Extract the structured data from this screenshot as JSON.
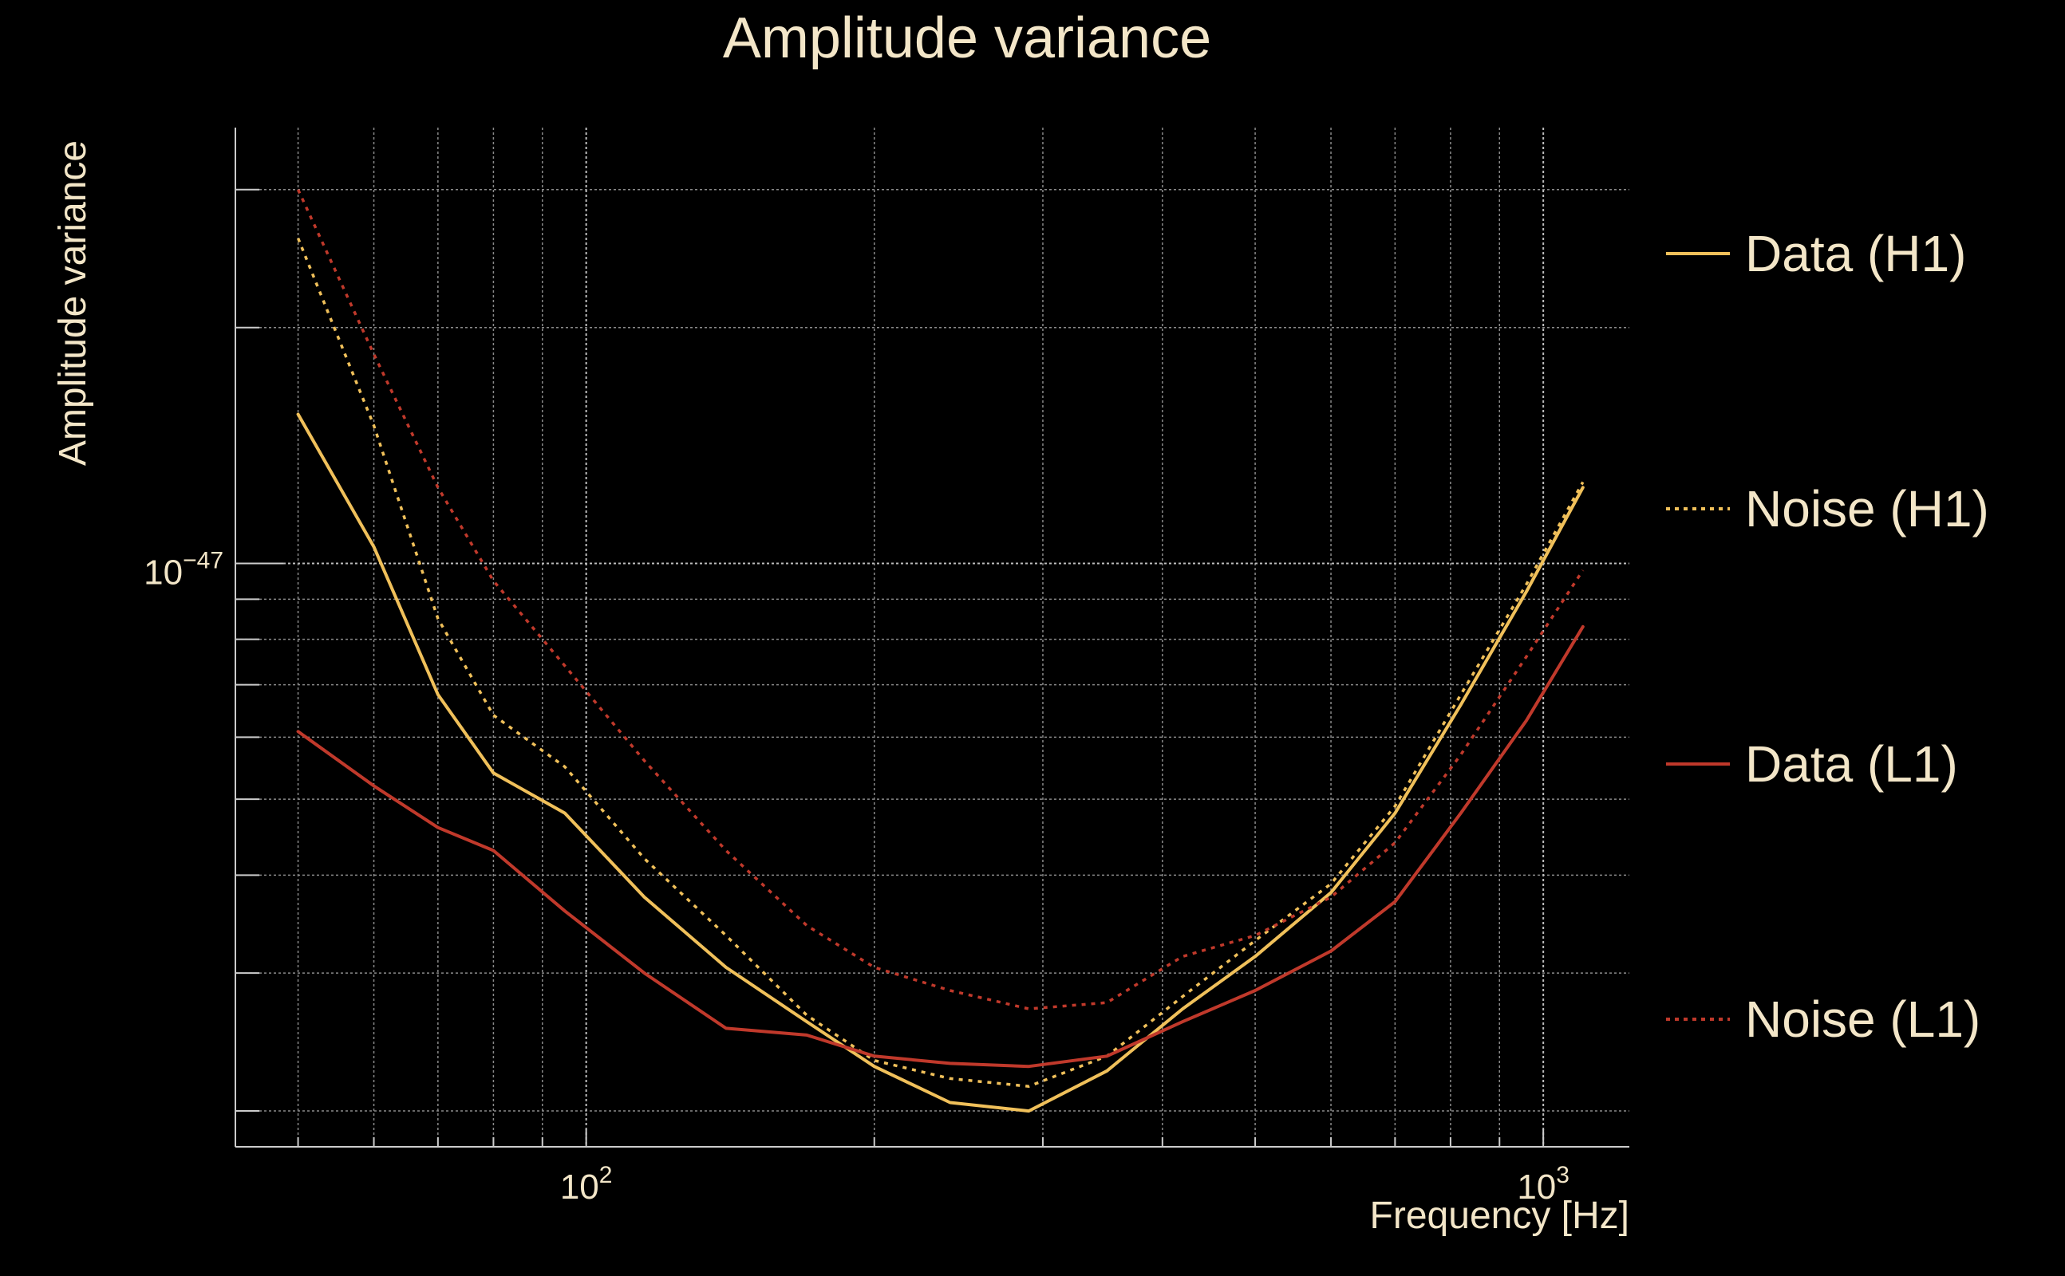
{
  "chart_data": {
    "type": "line",
    "title": "Amplitude variance",
    "xlabel": "Frequency [Hz]",
    "ylabel": "Amplitude variance",
    "xscale": "log",
    "yscale": "log",
    "xlim": [
      43,
      1230
    ],
    "ylim": [
      1.8e-48,
      3.6e-47
    ],
    "grid": true,
    "legend_location": "right",
    "x_ticks": [
      {
        "value": 100,
        "base": "10",
        "exp": "2"
      },
      {
        "value": 1000,
        "base": "10",
        "exp": "3"
      }
    ],
    "y_ticks": [
      {
        "value": 1e-47,
        "base": "10",
        "exp": "−47"
      }
    ],
    "x": [
      50,
      60,
      70,
      80,
      95,
      115,
      140,
      170,
      200,
      240,
      290,
      350,
      420,
      500,
      600,
      700,
      820,
      960,
      1100
    ],
    "series": [
      {
        "name": "Data (H1)",
        "color": "#f0c05a",
        "dash": "solid",
        "values": [
          1.55e-47,
          1.05e-47,
          6.8e-48,
          5.4e-48,
          4.8e-48,
          3.75e-48,
          3.05e-48,
          2.6e-48,
          2.28e-48,
          2.05e-48,
          2e-48,
          2.25e-48,
          2.7e-48,
          3.15e-48,
          3.8e-48,
          4.8e-48,
          6.6e-48,
          9.2e-48,
          1.25e-47
        ]
      },
      {
        "name": "Noise (H1)",
        "color": "#f0c05a",
        "dash": "dotted",
        "values": [
          2.6e-47,
          1.5e-47,
          8.5e-48,
          6.4e-48,
          5.5e-48,
          4.2e-48,
          3.35e-48,
          2.65e-48,
          2.32e-48,
          2.2e-48,
          2.15e-48,
          2.35e-48,
          2.8e-48,
          3.3e-48,
          3.9e-48,
          4.9e-48,
          6.8e-48,
          9.4e-48,
          1.27e-47
        ]
      },
      {
        "name": "Data (L1)",
        "color": "#c0392b",
        "dash": "solid",
        "values": [
          6.1e-48,
          5.2e-48,
          4.6e-48,
          4.3e-48,
          3.6e-48,
          3e-48,
          2.55e-48,
          2.5e-48,
          2.35e-48,
          2.3e-48,
          2.28e-48,
          2.35e-48,
          2.6e-48,
          2.85e-48,
          3.2e-48,
          3.7e-48,
          4.8e-48,
          6.3e-48,
          8.3e-48
        ]
      },
      {
        "name": "Noise (L1)",
        "color": "#c0392b",
        "dash": "dotted",
        "values": [
          3e-47,
          1.85e-47,
          1.25e-47,
          9.5e-48,
          7.4e-48,
          5.6e-48,
          4.3e-48,
          3.45e-48,
          3.05e-48,
          2.85e-48,
          2.7e-48,
          2.75e-48,
          3.15e-48,
          3.35e-48,
          3.75e-48,
          4.4e-48,
          5.7e-48,
          7.6e-48,
          9.8e-48
        ]
      }
    ]
  }
}
